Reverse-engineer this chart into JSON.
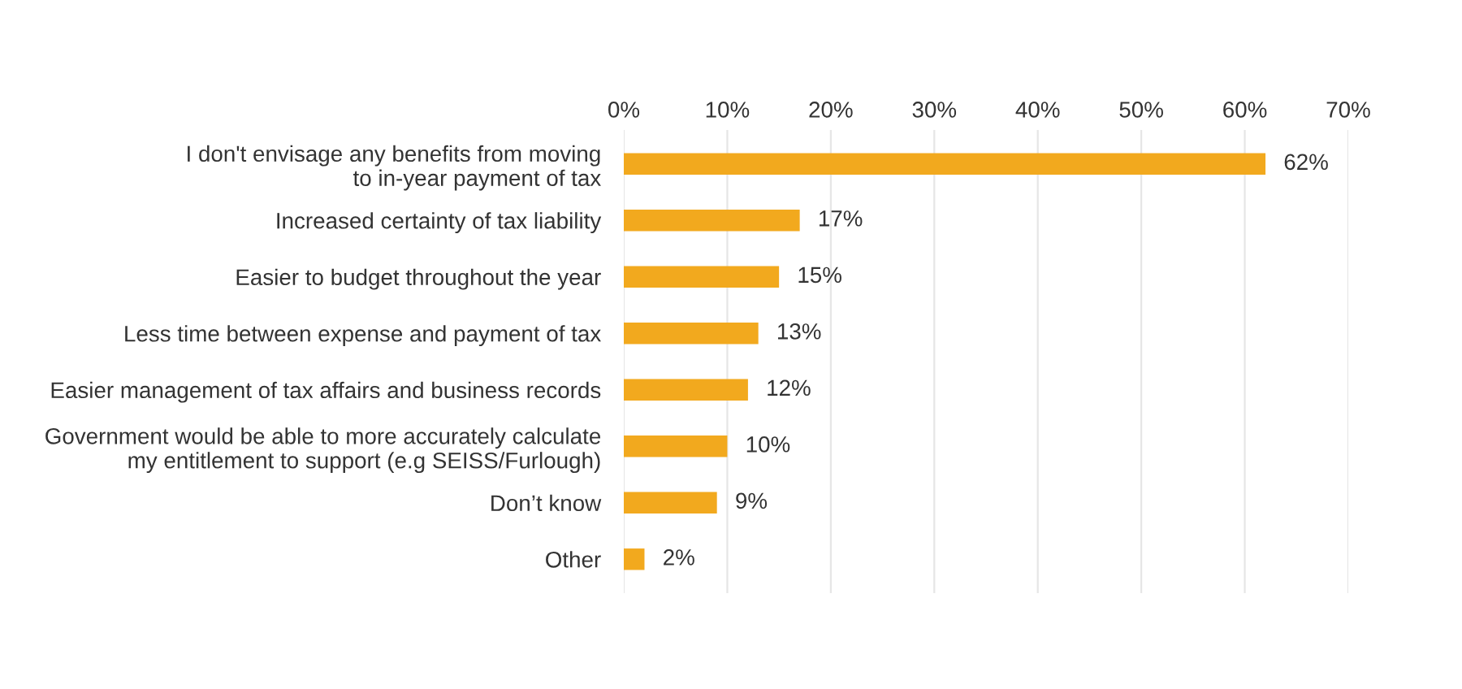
{
  "chart_data": {
    "type": "bar",
    "orientation": "horizontal",
    "categories": [
      "I don't envisage any benefits from moving\nto in-year payment of tax",
      "Increased certainty of tax liability",
      "Easier to budget throughout the year",
      "Less time between expense and payment of tax",
      "Easier management of tax affairs and business records",
      "Government would be able to more accurately calculate\nmy entitlement to support (e.g SEISS/Furlough)",
      "Don’t know",
      "Other"
    ],
    "values": [
      62,
      17,
      15,
      13,
      12,
      10,
      9,
      2
    ],
    "value_labels": [
      "62%",
      "17%",
      "15%",
      "13%",
      "12%",
      "10%",
      "9%",
      "2%"
    ],
    "color": "#f2a91e",
    "xlim": [
      0,
      70
    ],
    "xticks": [
      {
        "value": 0,
        "label": "0%"
      },
      {
        "value": 10,
        "label": "10%"
      },
      {
        "value": 20,
        "label": "20%"
      },
      {
        "value": 30,
        "label": "30%"
      },
      {
        "value": 40,
        "label": "40%"
      },
      {
        "value": 50,
        "label": "50%"
      },
      {
        "value": 60,
        "label": "60%"
      },
      {
        "value": 70,
        "label": "70%"
      }
    ],
    "grid": "x",
    "legend": false
  }
}
